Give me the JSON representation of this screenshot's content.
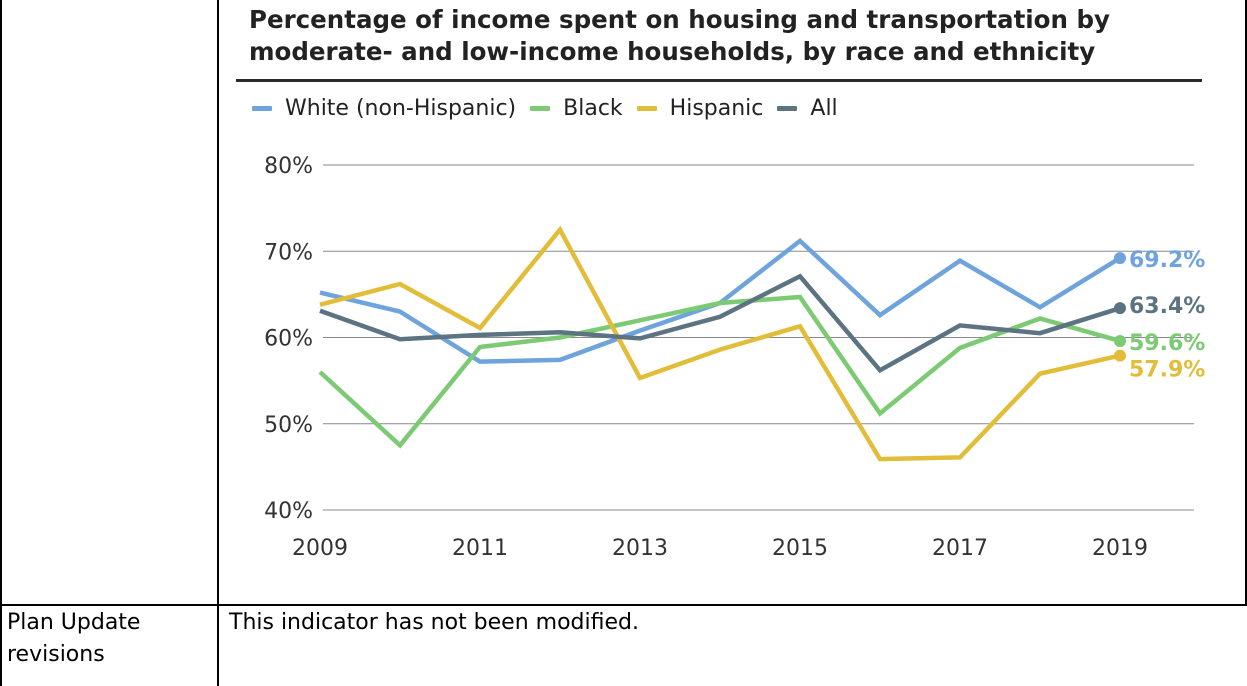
{
  "chart_data": {
    "type": "line",
    "title_line1": "Percentage of income spent on housing and transportation by",
    "title_line2": "moderate- and low-income households, by race and ethnicity",
    "x": [
      2009,
      2010,
      2011,
      2012,
      2013,
      2014,
      2015,
      2016,
      2017,
      2018,
      2019
    ],
    "x_tick_labels": [
      "2009",
      "2011",
      "2013",
      "2015",
      "2017",
      "2019"
    ],
    "y_tick_labels": [
      "80%",
      "70%",
      "60%",
      "50%",
      "40%"
    ],
    "ylim": [
      40,
      80
    ],
    "grid": true,
    "legend_position": "top-left",
    "series": [
      {
        "name": "White (non-Hispanic)",
        "color": "#6fa3dc",
        "end_label": "69.2%",
        "values": [
          65.2,
          63.0,
          57.2,
          57.4,
          60.8,
          64.0,
          71.2,
          62.6,
          68.9,
          63.5,
          69.2
        ]
      },
      {
        "name": "Black",
        "color": "#7dca74",
        "end_label": "59.6%",
        "values": [
          56.0,
          47.5,
          58.9,
          60.0,
          62.0,
          64.0,
          64.7,
          51.2,
          58.8,
          62.2,
          59.6
        ]
      },
      {
        "name": "Hispanic",
        "color": "#e2bd3a",
        "end_label": "57.9%",
        "values": [
          63.8,
          66.2,
          61.1,
          72.5,
          55.3,
          58.6,
          61.3,
          45.9,
          46.1,
          55.8,
          57.9
        ]
      },
      {
        "name": "All",
        "color": "#5c7382",
        "end_label": "63.4%",
        "values": [
          63.1,
          59.8,
          60.3,
          60.6,
          59.9,
          62.4,
          67.1,
          56.2,
          61.4,
          60.5,
          63.4
        ]
      }
    ]
  },
  "table": {
    "row_label": "Plan Update revisions",
    "row_text": "This indicator has not been modified."
  }
}
